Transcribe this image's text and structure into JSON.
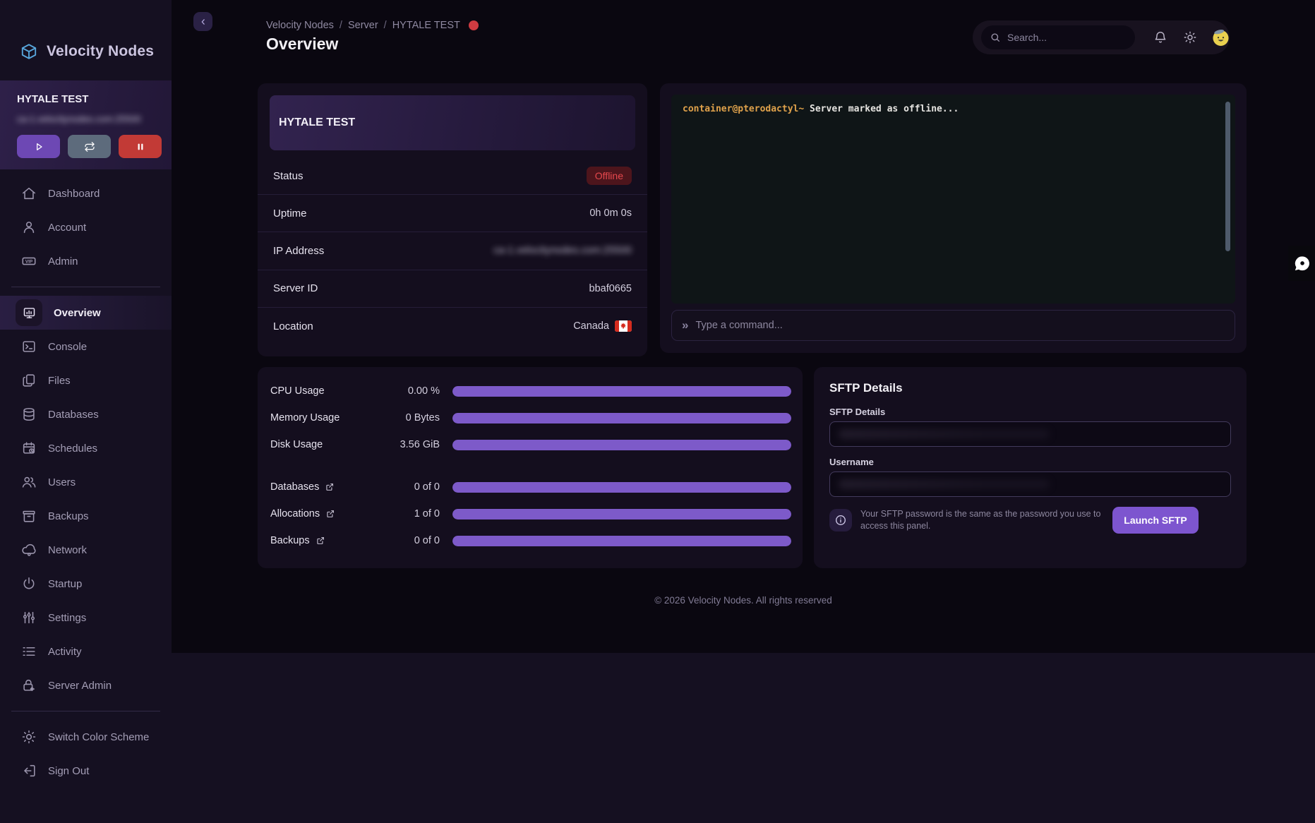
{
  "app": {
    "footer": "© 2026 Velocity Nodes. All rights reserved"
  },
  "colors": {
    "accent_purple": "#7d5ac9",
    "offline_red": "#e5484d",
    "status_dot_red": "#cf3b41",
    "terminal_prompt_gold": "#dfa14b",
    "start_button": "#6d48b4",
    "restart_button": "#5d6b7c",
    "stop_button": "#c23a36"
  },
  "sidebar": {
    "logo_text": "Velocity Nodes",
    "server_widget": {
      "name": "HYTALE TEST",
      "address": "ca-1.velocitynodes.com:25500",
      "address_blurred": true
    },
    "power_actions": [
      {
        "id": "start",
        "icon": "play-icon"
      },
      {
        "id": "restart",
        "icon": "restart-icon"
      },
      {
        "id": "stop",
        "icon": "stop-icon"
      }
    ],
    "groups": [
      {
        "items": [
          {
            "label": "Dashboard",
            "icon": "home-icon"
          },
          {
            "label": "Account",
            "icon": "user-icon"
          },
          {
            "label": "Admin",
            "icon": "vip-icon"
          }
        ]
      },
      {
        "items": [
          {
            "label": "Overview",
            "icon": "monitor-icon",
            "active": true
          },
          {
            "label": "Console",
            "icon": "terminal-icon"
          },
          {
            "label": "Files",
            "icon": "files-icon"
          },
          {
            "label": "Databases",
            "icon": "database-icon"
          },
          {
            "label": "Schedules",
            "icon": "schedule-icon"
          },
          {
            "label": "Users",
            "icon": "users-icon"
          },
          {
            "label": "Backups",
            "icon": "backup-icon"
          },
          {
            "label": "Network",
            "icon": "network-icon"
          },
          {
            "label": "Startup",
            "icon": "power-icon"
          },
          {
            "label": "Settings",
            "icon": "sliders-icon"
          },
          {
            "label": "Activity",
            "icon": "activity-icon"
          },
          {
            "label": "Server Admin",
            "icon": "lock-gear-icon"
          }
        ]
      },
      {
        "items": [
          {
            "label": "Switch Color Scheme",
            "icon": "sun-icon"
          },
          {
            "label": "Sign Out",
            "icon": "signout-icon"
          }
        ]
      }
    ]
  },
  "header": {
    "breadcrumb": [
      "Velocity Nodes",
      "Server",
      "HYTALE TEST"
    ],
    "page_title": "Overview",
    "search_placeholder": "Search..."
  },
  "server_info": {
    "title": "HYTALE TEST",
    "rows": [
      {
        "label": "Status",
        "value": "Offline",
        "type": "badge"
      },
      {
        "label": "Uptime",
        "value": "0h 0m 0s"
      },
      {
        "label": "IP Address",
        "value": "ca-1.velocitynodes.com:25500",
        "blurred": true
      },
      {
        "label": "Server ID",
        "value": "bbaf0665"
      },
      {
        "label": "Location",
        "value": "Canada",
        "flag": "canada-flag-icon"
      }
    ]
  },
  "console": {
    "prompt": "container@pterodactyl~",
    "message": "Server marked as offline...",
    "command_placeholder": "Type a command..."
  },
  "usage": {
    "stats": [
      {
        "label": "CPU Usage",
        "value": "0.00 %",
        "bar_percent": 100
      },
      {
        "label": "Memory Usage",
        "value": "0 Bytes",
        "bar_percent": 100
      },
      {
        "label": "Disk Usage",
        "value": "3.56 GiB",
        "bar_percent": 100
      }
    ],
    "links": [
      {
        "label": "Databases",
        "value": "0 of 0",
        "bar_percent": 100
      },
      {
        "label": "Allocations",
        "value": "1 of 0",
        "bar_percent": 100
      },
      {
        "label": "Backups",
        "value": "0 of 0",
        "bar_percent": 100
      }
    ]
  },
  "sftp": {
    "title": "SFTP Details",
    "fields": [
      {
        "label": "SFTP Details",
        "value": "",
        "redacted": true
      },
      {
        "label": "Username",
        "value": "",
        "redacted": true
      }
    ],
    "note": "Your SFTP password is the same as the password you use to access this panel.",
    "launch_label": "Launch SFTP"
  }
}
